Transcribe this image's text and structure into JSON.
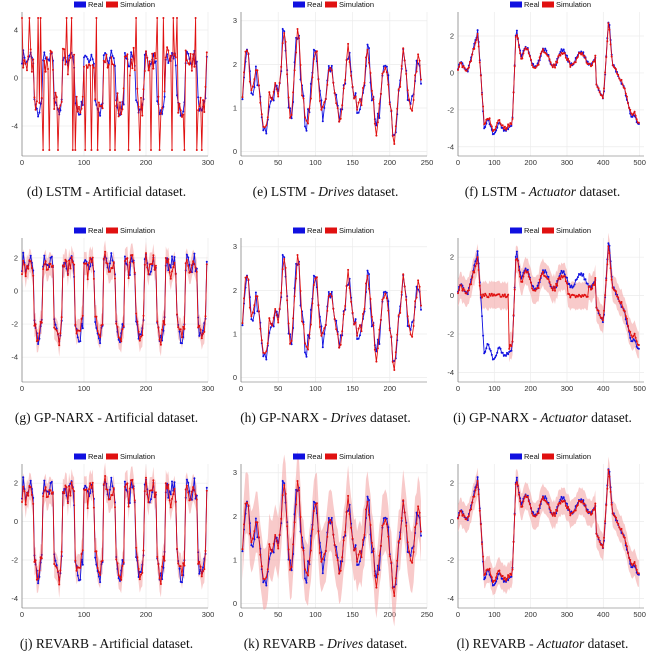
{
  "figure": {
    "legend": {
      "real": "Real",
      "simulation": "Simulation"
    },
    "colors": {
      "real": "#1010e0",
      "simulation": "#e01010",
      "band": "#f4a6a6",
      "grid": "#ececec",
      "axis": "#666666"
    }
  },
  "chart_data": [
    {
      "type": "line",
      "model": "LSTM",
      "dataset": "Artificial",
      "caption_prefix": "(d) LSTM - ",
      "caption_dataset": "Artificial",
      "caption_suffix": " dataset.",
      "xlim": [
        0,
        300
      ],
      "ylim": [
        -6.5,
        5.5
      ],
      "xticks": [
        0,
        100,
        200,
        300
      ],
      "yticks": [
        4,
        0,
        -4
      ],
      "band": false,
      "series": [
        {
          "name": "Real",
          "pattern": "artificial-real"
        },
        {
          "name": "Simulation",
          "pattern": "artificial-lstm"
        }
      ]
    },
    {
      "type": "line",
      "model": "LSTM",
      "dataset": "Drives",
      "caption_prefix": "(e) LSTM - ",
      "caption_dataset": "Drives",
      "caption_suffix": " dataset.",
      "xlim": [
        0,
        250
      ],
      "ylim": [
        -0.1,
        3.2
      ],
      "xticks": [
        0,
        50,
        100,
        150,
        200,
        250
      ],
      "yticks": [
        3,
        2,
        1,
        0
      ],
      "band": false,
      "series": [
        {
          "name": "Real",
          "pattern": "drives-real"
        },
        {
          "name": "Simulation",
          "pattern": "drives-sim"
        }
      ]
    },
    {
      "type": "line",
      "model": "LSTM",
      "dataset": "Actuator",
      "caption_prefix": "(f) LSTM - ",
      "caption_dataset": "Actuator",
      "caption_suffix": " dataset.",
      "xlim": [
        0,
        512
      ],
      "ylim": [
        -4.5,
        3.3
      ],
      "xticks": [
        0,
        100,
        200,
        300,
        400,
        500
      ],
      "yticks": [
        2,
        0,
        -2,
        -4
      ],
      "band": false,
      "series": [
        {
          "name": "Real",
          "pattern": "actuator-real"
        },
        {
          "name": "Simulation",
          "pattern": "actuator-sim"
        }
      ]
    },
    {
      "type": "line",
      "model": "GP-NARX",
      "dataset": "Artificial",
      "caption_prefix": "(g) GP-NARX - ",
      "caption_dataset": "Artificial",
      "caption_suffix": " dataset.",
      "xlim": [
        0,
        300
      ],
      "ylim": [
        -5.5,
        3.2
      ],
      "xticks": [
        0,
        100,
        200,
        300
      ],
      "yticks": [
        2,
        0,
        -2,
        -4
      ],
      "band": true,
      "series": [
        {
          "name": "Real",
          "pattern": "artificial-real"
        },
        {
          "name": "Simulation",
          "pattern": "artificial-sim"
        }
      ]
    },
    {
      "type": "line",
      "model": "GP-NARX",
      "dataset": "Drives",
      "caption_prefix": "(h) GP-NARX - ",
      "caption_dataset": "Drives",
      "caption_suffix": " dataset.",
      "xlim": [
        0,
        250
      ],
      "ylim": [
        -0.1,
        3.2
      ],
      "xticks": [
        0,
        50,
        100,
        150,
        200
      ],
      "yticks": [
        3,
        2,
        1,
        0
      ],
      "band": false,
      "series": [
        {
          "name": "Real",
          "pattern": "drives-real"
        },
        {
          "name": "Simulation",
          "pattern": "drives-sim"
        }
      ]
    },
    {
      "type": "line",
      "model": "GP-NARX",
      "dataset": "Actuator",
      "caption_prefix": "(i) GP-NARX - ",
      "caption_dataset": "Actuator",
      "caption_suffix": " dataset.",
      "xlim": [
        0,
        512
      ],
      "ylim": [
        -4.5,
        3.0
      ],
      "xticks": [
        0,
        100,
        200,
        300,
        400,
        500
      ],
      "yticks": [
        2,
        0,
        -2,
        -4
      ],
      "band": true,
      "series": [
        {
          "name": "Real",
          "pattern": "actuator-real"
        },
        {
          "name": "Simulation",
          "pattern": "actuator-gp"
        }
      ]
    },
    {
      "type": "line",
      "model": "REVARB",
      "dataset": "Artificial",
      "caption_prefix": "(j) REVARB - ",
      "caption_dataset": "Artificial",
      "caption_suffix": " dataset.",
      "xlim": [
        0,
        300
      ],
      "ylim": [
        -4.5,
        3.0
      ],
      "xticks": [
        0,
        100,
        200,
        300
      ],
      "yticks": [
        2,
        0,
        -2,
        -4
      ],
      "band": true,
      "series": [
        {
          "name": "Real",
          "pattern": "artificial-real"
        },
        {
          "name": "Simulation",
          "pattern": "artificial-sim"
        }
      ]
    },
    {
      "type": "line",
      "model": "REVARB",
      "dataset": "Drives",
      "caption_prefix": "(k) REVARB - ",
      "caption_dataset": "Drives",
      "caption_suffix": " dataset.",
      "xlim": [
        0,
        250
      ],
      "ylim": [
        -0.1,
        3.2
      ],
      "xticks": [
        0,
        50,
        100,
        150,
        200,
        250
      ],
      "yticks": [
        3,
        2,
        1,
        0
      ],
      "band": true,
      "series": [
        {
          "name": "Real",
          "pattern": "drives-real"
        },
        {
          "name": "Simulation",
          "pattern": "drives-sim"
        }
      ]
    },
    {
      "type": "line",
      "model": "REVARB",
      "dataset": "Actuator",
      "caption_prefix": "(l) REVARB - ",
      "caption_dataset": "Actuator",
      "caption_suffix": " dataset.",
      "xlim": [
        0,
        512
      ],
      "ylim": [
        -4.5,
        3.0
      ],
      "xticks": [
        0,
        100,
        200,
        300,
        400,
        500
      ],
      "yticks": [
        2,
        0,
        -2,
        -4
      ],
      "band": true,
      "series": [
        {
          "name": "Real",
          "pattern": "actuator-real"
        },
        {
          "name": "Simulation",
          "pattern": "actuator-sim"
        }
      ]
    }
  ]
}
